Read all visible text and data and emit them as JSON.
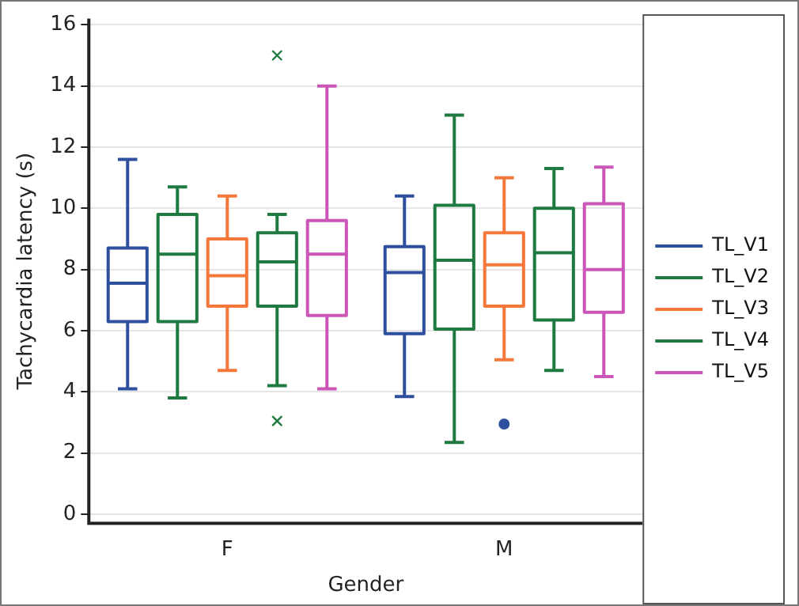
{
  "chart_data": {
    "type": "box",
    "xlabel": "Gender",
    "ylabel": "Tachycardia latency (s)",
    "categories": [
      "F",
      "M"
    ],
    "ylim": [
      -0.3,
      16.2
    ],
    "yticks": [
      0,
      2,
      4,
      6,
      8,
      10,
      12,
      14,
      16
    ],
    "grid": "y",
    "legend": "right",
    "series": [
      {
        "name": "TL_V1",
        "color": "#2e4f9e",
        "boxes": [
          {
            "low": 4.1,
            "q1": 6.3,
            "median": 7.55,
            "q3": 8.7,
            "high": 11.6
          },
          {
            "low": 3.85,
            "q1": 5.9,
            "median": 7.9,
            "q3": 8.75,
            "high": 10.4
          }
        ]
      },
      {
        "name": "TL_V2",
        "color": "#1e7a40",
        "boxes": [
          {
            "low": 3.8,
            "q1": 6.3,
            "median": 8.5,
            "q3": 9.8,
            "high": 10.7
          },
          {
            "low": 2.35,
            "q1": 6.05,
            "median": 8.3,
            "q3": 10.1,
            "high": 13.05
          }
        ]
      },
      {
        "name": "TL_V3",
        "color": "#f5783a",
        "marker": "circle",
        "boxes": [
          {
            "low": 4.7,
            "q1": 6.8,
            "median": 7.8,
            "q3": 9.0,
            "high": 10.4
          },
          {
            "low": 5.05,
            "q1": 6.8,
            "median": 8.15,
            "q3": 9.2,
            "high": 11.0,
            "outliers": [
              2.95
            ]
          }
        ]
      },
      {
        "name": "TL_V4",
        "color": "#1e7a40",
        "marker": "cross",
        "boxes": [
          {
            "low": 4.2,
            "q1": 6.8,
            "median": 8.25,
            "q3": 9.2,
            "high": 9.8,
            "outliers": [
              15,
              3.05
            ]
          },
          {
            "low": 4.7,
            "q1": 6.35,
            "median": 8.55,
            "q3": 10.0,
            "high": 11.3
          }
        ]
      },
      {
        "name": "TL_V5",
        "color": "#cc55b8",
        "boxes": [
          {
            "low": 4.1,
            "q1": 6.5,
            "median": 8.5,
            "q3": 9.6,
            "high": 14.0
          },
          {
            "low": 4.5,
            "q1": 6.6,
            "median": 8.0,
            "q3": 10.15,
            "high": 11.35
          }
        ]
      }
    ]
  }
}
